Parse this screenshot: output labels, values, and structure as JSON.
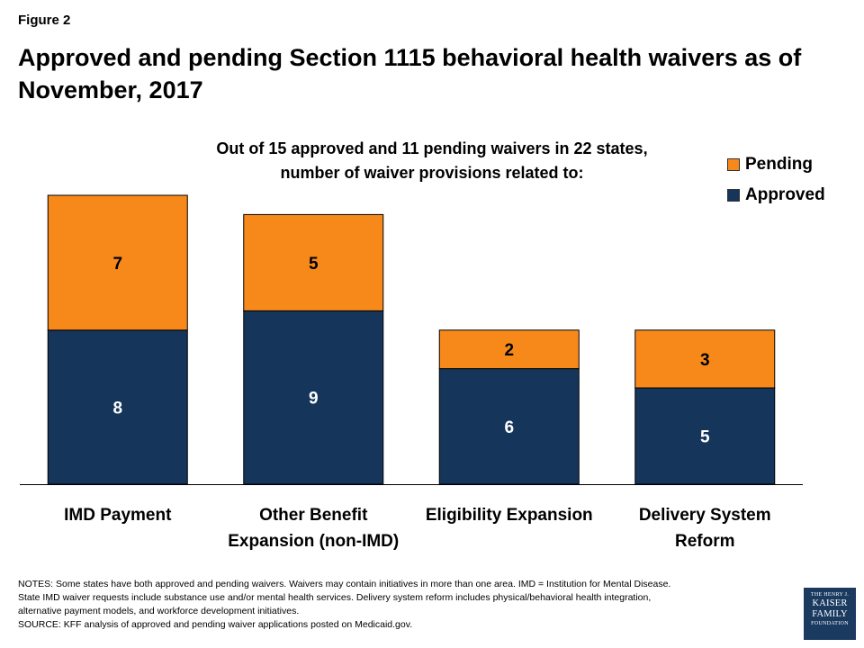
{
  "figure_label": "Figure 2",
  "title": "Approved and pending Section 1115 behavioral health waivers as of November, 2017",
  "subtitle_lines": [
    "Out of 15 approved and 11 pending waivers in 22 states,",
    "number of waiver provisions related to:"
  ],
  "legend": [
    {
      "name": "Pending",
      "color": "#f7891b"
    },
    {
      "name": "Approved",
      "color": "#15355b"
    }
  ],
  "chart_data": {
    "type": "bar",
    "stacked": true,
    "categories": [
      [
        "IMD Payment"
      ],
      [
        "Other Benefit",
        "Expansion (non-IMD)"
      ],
      [
        "Eligibility Expansion"
      ],
      [
        "Delivery System",
        "Reform"
      ]
    ],
    "series": [
      {
        "name": "Approved",
        "values": [
          8,
          9,
          6,
          5
        ],
        "color": "#15355b"
      },
      {
        "name": "Pending",
        "values": [
          7,
          5,
          2,
          3
        ],
        "color": "#f7891b"
      }
    ],
    "ylim": [
      0,
      15
    ],
    "legend_position": "top-right",
    "grid": false
  },
  "notes_lines": [
    "NOTES:  Some  states have both approved and pending waivers.  Waivers may contain initiatives in more than one area. IMD = Institution for Mental Disease.",
    "State IMD waiver requests include substance use and/or mental health services.  Delivery system reform  includes physical/behavioral health integration,",
    "alternative payment models, and workforce development  initiatives.",
    "SOURCE:   KFF analysis of approved and pending waiver applications posted on Medicaid.gov."
  ],
  "logo": {
    "line1": "THE HENRY J.",
    "line2": "KAISER",
    "line3": "FAMILY",
    "line4": "FOUNDATION"
  }
}
